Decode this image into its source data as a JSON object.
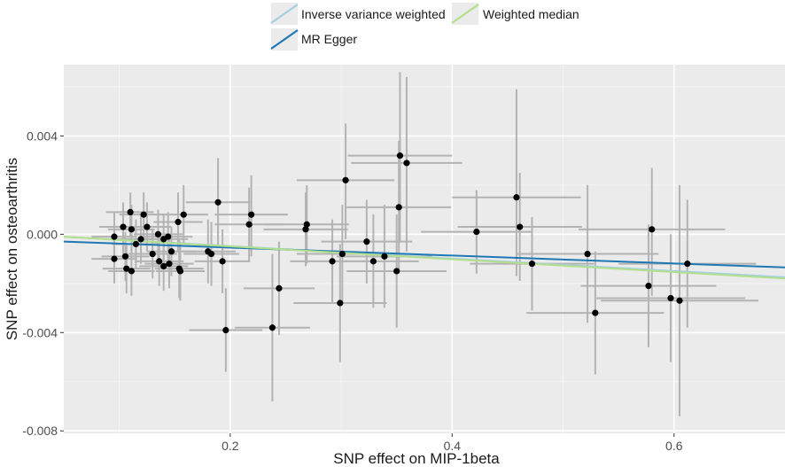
{
  "chart_data": {
    "type": "scatter",
    "title": "",
    "xlabel": "SNP effect on MIP-1beta",
    "ylabel": "SNP effect on osteoarthritis",
    "xlim": [
      0.05,
      0.7
    ],
    "ylim": [
      -0.0081,
      0.0069
    ],
    "x_ticks": [
      0.2,
      0.4,
      0.6
    ],
    "x_tick_labels": [
      "0.2",
      "0.4",
      "0.6"
    ],
    "y_ticks": [
      0.004,
      0.0,
      -0.004,
      -0.008
    ],
    "y_tick_labels": [
      "0.004",
      "0.000",
      "-0.004",
      "-0.008"
    ],
    "grid": true,
    "legend_position": "top",
    "lines": [
      {
        "name": "Inverse variance weighted",
        "color": "#a6cee3",
        "x": [
          0.05,
          0.7
        ],
        "y": [
          -0.0001,
          -0.00175
        ]
      },
      {
        "name": "MR Egger",
        "color": "#1f78b4",
        "x": [
          0.05,
          0.7
        ],
        "y": [
          -0.0003,
          -0.00135
        ]
      },
      {
        "name": "Weighted median",
        "color": "#b2df8a",
        "x": [
          0.05,
          0.7
        ],
        "y": [
          -0.0001,
          -0.0018
        ]
      }
    ],
    "points": [
      {
        "x": 0.0955,
        "y": -0.0001,
        "xlo": 0.075,
        "xhi": 0.115,
        "ylo": -0.0011,
        "yhi": 0.0009
      },
      {
        "x": 0.1035,
        "y": 0.0003,
        "xlo": 0.082,
        "xhi": 0.125,
        "ylo": -0.0008,
        "yhi": 0.0013
      },
      {
        "x": 0.11,
        "y": 0.0009,
        "xlo": 0.088,
        "xhi": 0.131,
        "ylo": -0.0001,
        "yhi": 0.0017
      },
      {
        "x": 0.122,
        "y": 0.0008,
        "xlo": 0.1,
        "xhi": 0.143,
        "ylo": -0.0002,
        "yhi": 0.0017
      },
      {
        "x": 0.125,
        "y": 0.0003,
        "xlo": 0.104,
        "xhi": 0.147,
        "ylo": -0.0007,
        "yhi": 0.0013
      },
      {
        "x": 0.111,
        "y": 0.0002,
        "xlo": 0.09,
        "xhi": 0.132,
        "ylo": -0.0008,
        "yhi": 0.0012
      },
      {
        "x": 0.1195,
        "y": -0.0002,
        "xlo": 0.098,
        "xhi": 0.141,
        "ylo": -0.0012,
        "yhi": 0.0008
      },
      {
        "x": 0.135,
        "y": 0.0,
        "xlo": 0.113,
        "xhi": 0.157,
        "ylo": -0.001,
        "yhi": 0.001
      },
      {
        "x": 0.14,
        "y": -0.0002,
        "xlo": 0.118,
        "xhi": 0.162,
        "ylo": -0.0012,
        "yhi": 0.0008
      },
      {
        "x": 0.115,
        "y": -0.0004,
        "xlo": 0.093,
        "xhi": 0.137,
        "ylo": -0.0014,
        "yhi": 0.0006
      },
      {
        "x": 0.0955,
        "y": -0.001,
        "xlo": 0.075,
        "xhi": 0.116,
        "ylo": -0.002,
        "yhi": 0.0
      },
      {
        "x": 0.1055,
        "y": -0.0009,
        "xlo": 0.084,
        "xhi": 0.127,
        "ylo": -0.0019,
        "yhi": 0.0001
      },
      {
        "x": 0.1065,
        "y": -0.0014,
        "xlo": 0.085,
        "xhi": 0.128,
        "ylo": -0.0024,
        "yhi": -0.0004
      },
      {
        "x": 0.111,
        "y": -0.0015,
        "xlo": 0.09,
        "xhi": 0.132,
        "ylo": -0.0025,
        "yhi": -0.0005
      },
      {
        "x": 0.13,
        "y": -0.0008,
        "xlo": 0.108,
        "xhi": 0.152,
        "ylo": -0.0018,
        "yhi": 0.0002
      },
      {
        "x": 0.136,
        "y": -0.0011,
        "xlo": 0.114,
        "xhi": 0.158,
        "ylo": -0.0021,
        "yhi": -0.0001
      },
      {
        "x": 0.14,
        "y": -0.0013,
        "xlo": 0.118,
        "xhi": 0.162,
        "ylo": -0.0023,
        "yhi": -0.0003
      },
      {
        "x": 0.145,
        "y": -0.0012,
        "xlo": 0.123,
        "xhi": 0.167,
        "ylo": -0.0022,
        "yhi": -0.0002
      },
      {
        "x": 0.147,
        "y": -0.0007,
        "xlo": 0.125,
        "xhi": 0.17,
        "ylo": -0.0017,
        "yhi": 0.0003
      },
      {
        "x": 0.144,
        "y": -0.0001,
        "xlo": 0.122,
        "xhi": 0.166,
        "ylo": -0.0011,
        "yhi": 0.0009
      },
      {
        "x": 0.153,
        "y": 0.0005,
        "xlo": 0.131,
        "xhi": 0.175,
        "ylo": -0.0007,
        "yhi": 0.0017
      },
      {
        "x": 0.158,
        "y": 0.0008,
        "xlo": 0.136,
        "xhi": 0.18,
        "ylo": -0.0004,
        "yhi": 0.002
      },
      {
        "x": 0.155,
        "y": -0.0015,
        "xlo": 0.133,
        "xhi": 0.177,
        "ylo": -0.0027,
        "yhi": -0.0003
      },
      {
        "x": 0.154,
        "y": -0.0014,
        "xlo": 0.132,
        "xhi": 0.176,
        "ylo": -0.0026,
        "yhi": -0.0002
      },
      {
        "x": 0.18,
        "y": -0.0007,
        "xlo": 0.155,
        "xhi": 0.205,
        "ylo": -0.002,
        "yhi": 0.0006
      },
      {
        "x": 0.183,
        "y": -0.0008,
        "xlo": 0.158,
        "xhi": 0.208,
        "ylo": -0.0021,
        "yhi": 0.0005
      },
      {
        "x": 0.189,
        "y": 0.0013,
        "xlo": 0.16,
        "xhi": 0.218,
        "ylo": -0.0005,
        "yhi": 0.0031
      },
      {
        "x": 0.193,
        "y": -0.0011,
        "xlo": 0.168,
        "xhi": 0.218,
        "ylo": -0.0024,
        "yhi": 0.0002
      },
      {
        "x": 0.196,
        "y": -0.0039,
        "xlo": 0.163,
        "xhi": 0.229,
        "ylo": -0.0056,
        "yhi": -0.0022
      },
      {
        "x": 0.217,
        "y": 0.0004,
        "xlo": 0.186,
        "xhi": 0.248,
        "ylo": -0.0011,
        "yhi": 0.0019
      },
      {
        "x": 0.219,
        "y": 0.0008,
        "xlo": 0.186,
        "xhi": 0.252,
        "ylo": -0.0009,
        "yhi": 0.0024
      },
      {
        "x": 0.244,
        "y": -0.0022,
        "xlo": 0.212,
        "xhi": 0.276,
        "ylo": -0.0041,
        "yhi": -0.0003
      },
      {
        "x": 0.238,
        "y": -0.0038,
        "xlo": 0.204,
        "xhi": 0.272,
        "ylo": -0.0068,
        "yhi": -0.0008
      },
      {
        "x": 0.268,
        "y": 0.0002,
        "xlo": 0.23,
        "xhi": 0.306,
        "ylo": -0.0013,
        "yhi": 0.0017
      },
      {
        "x": 0.269,
        "y": 0.0004,
        "xlo": 0.231,
        "xhi": 0.307,
        "ylo": -0.0012,
        "yhi": 0.002
      },
      {
        "x": 0.292,
        "y": -0.0011,
        "xlo": 0.254,
        "xhi": 0.33,
        "ylo": -0.0028,
        "yhi": 0.0006
      },
      {
        "x": 0.299,
        "y": -0.0028,
        "xlo": 0.257,
        "xhi": 0.341,
        "ylo": -0.0052,
        "yhi": -0.0004
      },
      {
        "x": 0.301,
        "y": -0.0008,
        "xlo": 0.26,
        "xhi": 0.342,
        "ylo": -0.0028,
        "yhi": 0.0012
      },
      {
        "x": 0.304,
        "y": 0.0022,
        "xlo": 0.26,
        "xhi": 0.348,
        "ylo": -0.0002,
        "yhi": 0.0045
      },
      {
        "x": 0.323,
        "y": -0.0003,
        "xlo": 0.282,
        "xhi": 0.364,
        "ylo": -0.002,
        "yhi": 0.0014
      },
      {
        "x": 0.329,
        "y": -0.0011,
        "xlo": 0.288,
        "xhi": 0.37,
        "ylo": -0.003,
        "yhi": 0.0008
      },
      {
        "x": 0.339,
        "y": -0.0009,
        "xlo": 0.296,
        "xhi": 0.382,
        "ylo": -0.003,
        "yhi": 0.0012
      },
      {
        "x": 0.35,
        "y": -0.0015,
        "xlo": 0.305,
        "xhi": 0.395,
        "ylo": -0.0038,
        "yhi": 0.0008
      },
      {
        "x": 0.352,
        "y": 0.0011,
        "xlo": 0.305,
        "xhi": 0.399,
        "ylo": -0.0016,
        "yhi": 0.0038
      },
      {
        "x": 0.353,
        "y": 0.0032,
        "xlo": 0.306,
        "xhi": 0.4,
        "ylo": -0.0003,
        "yhi": 0.0066
      },
      {
        "x": 0.359,
        "y": 0.0029,
        "xlo": 0.309,
        "xhi": 0.409,
        "ylo": -0.0007,
        "yhi": 0.0064
      },
      {
        "x": 0.422,
        "y": 0.0001,
        "xlo": 0.372,
        "xhi": 0.472,
        "ylo": -0.0016,
        "yhi": 0.0018
      },
      {
        "x": 0.458,
        "y": 0.0015,
        "xlo": 0.4,
        "xhi": 0.516,
        "ylo": -0.0017,
        "yhi": 0.0059
      },
      {
        "x": 0.461,
        "y": 0.0003,
        "xlo": 0.405,
        "xhi": 0.517,
        "ylo": -0.0019,
        "yhi": 0.0025
      },
      {
        "x": 0.472,
        "y": -0.0012,
        "xlo": 0.416,
        "xhi": 0.528,
        "ylo": -0.0031,
        "yhi": 0.0007
      },
      {
        "x": 0.522,
        "y": -0.0008,
        "xlo": 0.458,
        "xhi": 0.586,
        "ylo": -0.0036,
        "yhi": 0.002
      },
      {
        "x": 0.529,
        "y": -0.0032,
        "xlo": 0.467,
        "xhi": 0.591,
        "ylo": -0.0057,
        "yhi": -0.0007
      },
      {
        "x": 0.577,
        "y": -0.0021,
        "xlo": 0.516,
        "xhi": 0.638,
        "ylo": -0.0046,
        "yhi": 0.0004
      },
      {
        "x": 0.58,
        "y": 0.0002,
        "xlo": 0.514,
        "xhi": 0.646,
        "ylo": -0.0025,
        "yhi": 0.0027
      },
      {
        "x": 0.597,
        "y": -0.0026,
        "xlo": 0.53,
        "xhi": 0.664,
        "ylo": -0.0052,
        "yhi": 0.0
      },
      {
        "x": 0.605,
        "y": -0.0027,
        "xlo": 0.534,
        "xhi": 0.676,
        "ylo": -0.0074,
        "yhi": 0.002
      },
      {
        "x": 0.612,
        "y": -0.0012,
        "xlo": 0.55,
        "xhi": 0.674,
        "ylo": -0.0038,
        "yhi": 0.0014
      }
    ]
  }
}
